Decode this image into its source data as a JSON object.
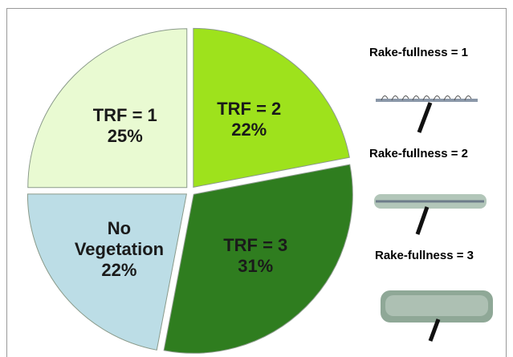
{
  "chart_data": {
    "type": "pie",
    "categories": [
      "TRF = 2",
      "TRF = 3",
      "No Vegetation",
      "TRF = 1"
    ],
    "values": [
      22,
      31,
      22,
      25
    ],
    "value_labels": [
      "22%",
      "31%",
      "22%",
      "25%"
    ],
    "colors": [
      "#9ee21c",
      "#2f7d1f",
      "#bcdde6",
      "#e9fad2"
    ],
    "label_colors": [
      "#1a1a1a",
      "#1a1a1a",
      "#1a1a1a",
      "#1a1a1a"
    ],
    "annotations": [
      "Rake-fullness = 1",
      "Rake-fullness = 2",
      "Rake-fullness = 3"
    ]
  }
}
